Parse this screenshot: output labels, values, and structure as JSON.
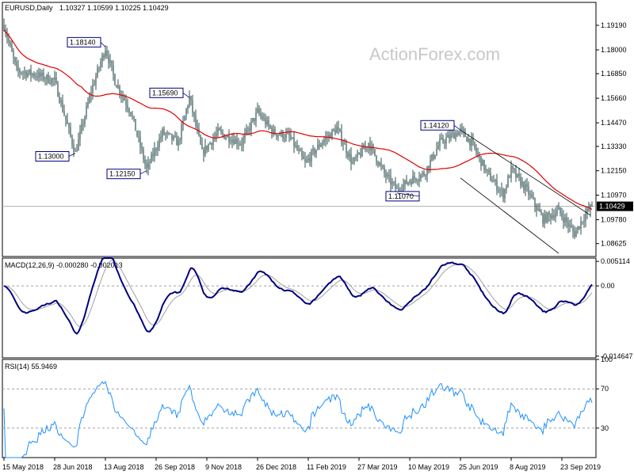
{
  "header": {
    "symbol": "EURUSD,Daily",
    "ohlc": "1.10327 1.10599 1.10225 1.10429"
  },
  "watermark": "ActionForex.com",
  "colors": {
    "candle": "#2f4f4f",
    "ma": "#e00000",
    "macd_main": "#000080",
    "macd_signal": "#a0a0a0",
    "rsi": "#1e90ff",
    "channel": "#000000",
    "grid_dash": "#a0a0a0",
    "border": "#000000"
  },
  "chart_data": [
    {
      "type": "candlestick",
      "panel": "price",
      "ylim": [
        1.08,
        1.203
      ],
      "y_ticks": [
        "1.19190",
        "1.18000",
        "1.16850",
        "1.15660",
        "1.14470",
        "1.13330",
        "1.12150",
        "1.10970",
        "1.09780",
        "1.08625"
      ],
      "y_tick_values": [
        1.1919,
        1.18,
        1.1685,
        1.1566,
        1.1447,
        1.1333,
        1.1215,
        1.1097,
        1.0978,
        1.08625
      ],
      "last_price_label": "1.10429",
      "last_price": 1.10429,
      "x_labels": [
        "15 May 2018",
        "28 Jun 2018",
        "13 Aug 2018",
        "26 Sep 2018",
        "9 Nov 2018",
        "26 Dec 2018",
        "11 Feb 2019",
        "27 Mar 2019",
        "10 May 2019",
        "25 Jun 2019",
        "8 Aug 2019",
        "23 Sep 2019"
      ],
      "x_label_bars": [
        0,
        32,
        64,
        96,
        128,
        160,
        192,
        224,
        256,
        288,
        320,
        352
      ],
      "annotations": [
        {
          "label": "1.18140",
          "bar": 64,
          "price": 1.1814
        },
        {
          "label": "1.13000",
          "bar": 45,
          "price": 1.13
        },
        {
          "label": "1.15690",
          "bar": 117,
          "price": 1.1569
        },
        {
          "label": "1.12150",
          "bar": 90,
          "price": 1.1215
        },
        {
          "label": "1.14120",
          "bar": 288,
          "price": 1.1412
        },
        {
          "label": "1.11070",
          "bar": 248,
          "price": 1.1107
        }
      ],
      "keypoints": [
        [
          0,
          1.192
        ],
        [
          8,
          1.17
        ],
        [
          20,
          1.168
        ],
        [
          32,
          1.165
        ],
        [
          45,
          1.13
        ],
        [
          55,
          1.16
        ],
        [
          64,
          1.181
        ],
        [
          70,
          1.165
        ],
        [
          80,
          1.15
        ],
        [
          90,
          1.122
        ],
        [
          100,
          1.14
        ],
        [
          110,
          1.135
        ],
        [
          117,
          1.157
        ],
        [
          125,
          1.13
        ],
        [
          135,
          1.14
        ],
        [
          150,
          1.135
        ],
        [
          160,
          1.15
        ],
        [
          170,
          1.14
        ],
        [
          180,
          1.138
        ],
        [
          190,
          1.125
        ],
        [
          200,
          1.135
        ],
        [
          210,
          1.142
        ],
        [
          220,
          1.125
        ],
        [
          230,
          1.135
        ],
        [
          240,
          1.12
        ],
        [
          248,
          1.112
        ],
        [
          256,
          1.117
        ],
        [
          265,
          1.12
        ],
        [
          275,
          1.135
        ],
        [
          288,
          1.141
        ],
        [
          295,
          1.135
        ],
        [
          305,
          1.12
        ],
        [
          315,
          1.11
        ],
        [
          320,
          1.122
        ],
        [
          330,
          1.112
        ],
        [
          340,
          1.098
        ],
        [
          350,
          1.102
        ],
        [
          360,
          1.091
        ],
        [
          366,
          1.0995
        ],
        [
          371,
          1.1043
        ]
      ],
      "ma_period": 50,
      "channel": {
        "upper": [
          [
            288,
            1.1412
          ],
          [
            370,
            1.1
          ]
        ],
        "lower": [
          [
            288,
            1.118
          ],
          [
            350,
            1.0815
          ]
        ]
      }
    },
    {
      "type": "line",
      "panel": "macd",
      "title": "MACD(12,26,9) -0.000280 -0.002013",
      "ylim": [
        -0.015,
        0.0058
      ],
      "y_ticks": [
        "0.005114",
        "0.00",
        "-0.014647"
      ],
      "y_tick_values": [
        0.005114,
        0,
        -0.014647
      ],
      "zero_label": "0.00",
      "macd": -0.00028,
      "signal": -0.002013
    },
    {
      "type": "line",
      "panel": "rsi",
      "title": "RSI(14) 55.9469",
      "ylim": [
        0,
        100
      ],
      "y_ticks": [
        "100",
        "70",
        "30",
        "0"
      ],
      "y_tick_values": [
        100,
        70,
        30,
        0
      ],
      "levels": [
        70,
        30
      ],
      "last": 55.9469
    }
  ]
}
